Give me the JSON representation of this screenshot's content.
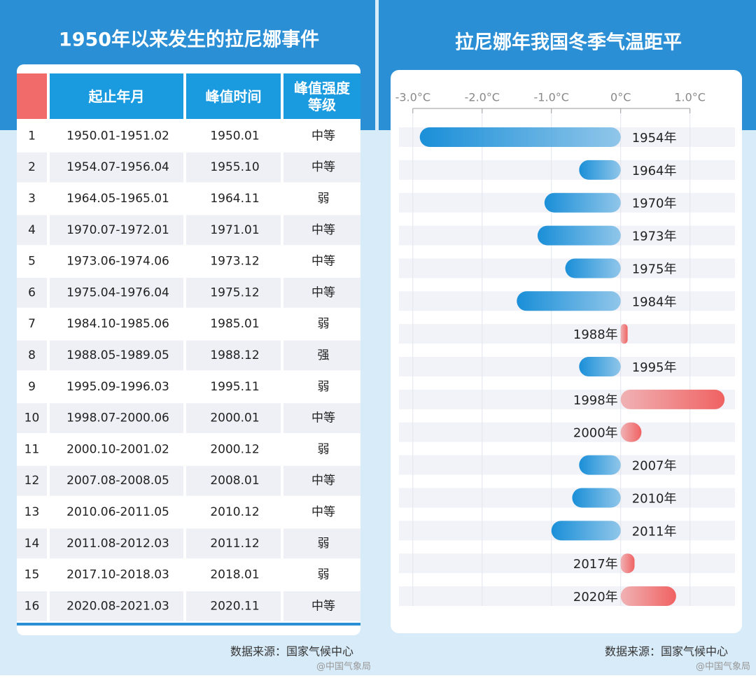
{
  "table": {
    "title": "1950年以来发生的拉尼娜事件",
    "columns": [
      "起止年月",
      "峰值时间",
      "峰值强度等级"
    ],
    "rows": [
      [
        1,
        "1950.01-1951.02",
        "1950.01",
        "中等"
      ],
      [
        2,
        "1954.07-1956.04",
        "1955.10",
        "中等"
      ],
      [
        3,
        "1964.05-1965.01",
        "1964.11",
        "弱"
      ],
      [
        4,
        "1970.07-1972.01",
        "1971.01",
        "中等"
      ],
      [
        5,
        "1973.06-1974.06",
        "1973.12",
        "中等"
      ],
      [
        6,
        "1975.04-1976.04",
        "1975.12",
        "中等"
      ],
      [
        7,
        "1984.10-1985.06",
        "1985.01",
        "弱"
      ],
      [
        8,
        "1988.05-1989.05",
        "1988.12",
        "强"
      ],
      [
        9,
        "1995.09-1996.03",
        "1995.11",
        "弱"
      ],
      [
        10,
        "1998.07-2000.06",
        "2000.01",
        "中等"
      ],
      [
        11,
        "2000.10-2001.02",
        "2000.12",
        "弱"
      ],
      [
        12,
        "2007.08-2008.05",
        "2008.01",
        "中等"
      ],
      [
        13,
        "2010.06-2011.05",
        "2010.12",
        "中等"
      ],
      [
        14,
        "2011.08-2012.03",
        "2011.12",
        "弱"
      ],
      [
        15,
        "2017.10-2018.03",
        "2018.01",
        "弱"
      ],
      [
        16,
        "2020.08-2021.03",
        "2020.11",
        "中等"
      ]
    ],
    "source": "数据来源：国家气候中心",
    "watermark": "@中国气象局"
  },
  "chart_data": {
    "type": "bar",
    "orientation": "horizontal",
    "title": "拉尼娜年我国冬季气温距平",
    "categories": [
      "1954年",
      "1964年",
      "1970年",
      "1973年",
      "1975年",
      "1984年",
      "1988年",
      "1995年",
      "1998年",
      "2000年",
      "2007年",
      "2010年",
      "2011年",
      "2017年",
      "2020年"
    ],
    "values": [
      -2.9,
      -0.6,
      -1.1,
      -1.2,
      -0.8,
      -1.5,
      0.1,
      -0.6,
      1.5,
      0.3,
      -0.6,
      -0.7,
      -1.0,
      0.2,
      0.8
    ],
    "negative_color": "#1a8fd8",
    "positive_color": "#f06262",
    "xlim": [
      -3.2,
      1.65
    ],
    "xticks": [
      {
        "value": -3,
        "label": "-3.0°C"
      },
      {
        "value": -2,
        "label": "-2.0°C"
      },
      {
        "value": -1,
        "label": "-1.0°C"
      },
      {
        "value": 0,
        "label": "0°C"
      },
      {
        "value": 1,
        "label": "1.0°C"
      }
    ],
    "grid": true,
    "source": "数据来源：国家气候中心",
    "watermark": "@中国气象局"
  }
}
